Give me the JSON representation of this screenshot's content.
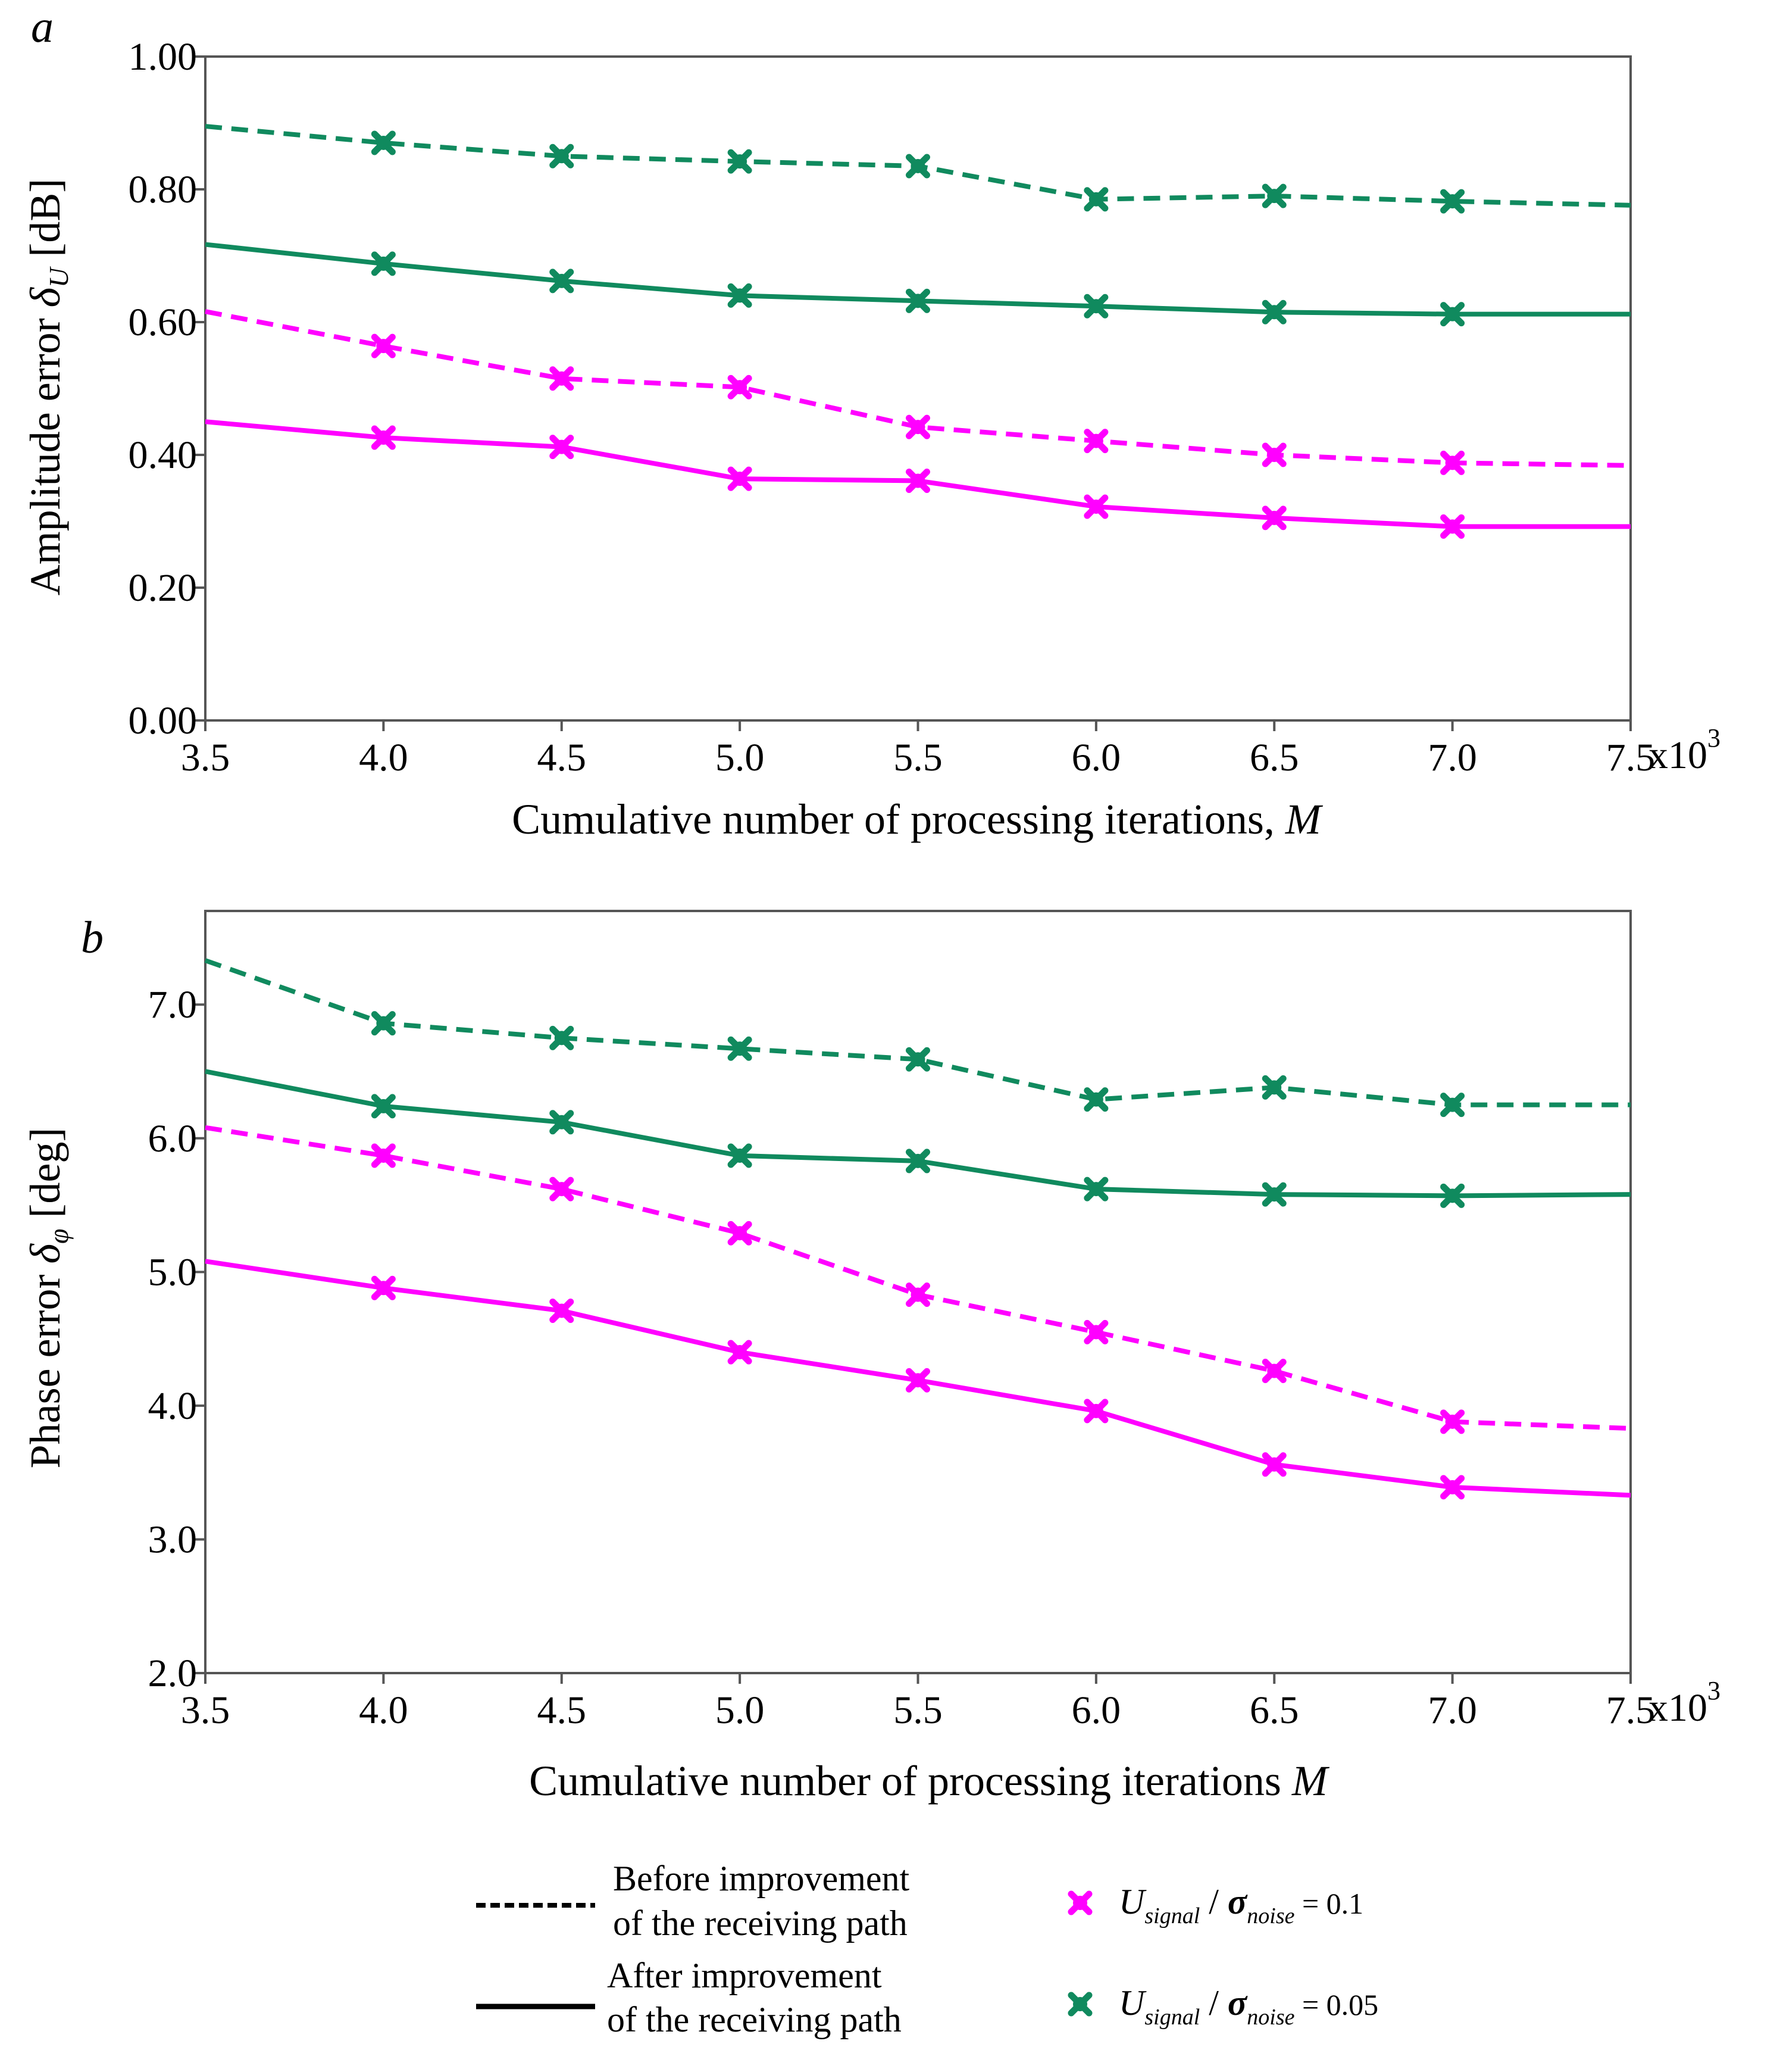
{
  "colors": {
    "magenta": "#ff00ff",
    "green": "#108a5e",
    "frame": "#555555",
    "text": "#000000"
  },
  "chart_data": [
    {
      "type": "line",
      "panel_label": "a",
      "x": [
        3.5,
        4.0,
        4.5,
        5.0,
        5.5,
        6.0,
        6.5,
        7.0,
        7.5
      ],
      "xlim": [
        3.5,
        7.5
      ],
      "ylim": [
        0.0,
        1.0
      ],
      "x_ticks": [
        "3.5",
        "4.0",
        "4.5",
        "5.0",
        "5.5",
        "6.0",
        "6.5",
        "7.0",
        "7.5"
      ],
      "y_ticks": [
        "0.00",
        "0.20",
        "0.40",
        "0.60",
        "0.80",
        "1.00"
      ],
      "x_multiplier": "x10",
      "x_multiplier_exp": "3",
      "xlabel": "Cumulative number of processing iterations, ",
      "xlabel_var": "M",
      "ylabel": "Amplitude error ",
      "ylabel_sym": "δ",
      "ylabel_sub": "U",
      "ylabel_unit": " [dB]",
      "series": [
        {
          "name": "Before improvement, Usignal/σnoise = 0.05",
          "color": "green",
          "dash": true,
          "values": [
            0.895,
            0.87,
            0.85,
            0.842,
            0.835,
            0.785,
            0.79,
            0.782,
            0.776
          ]
        },
        {
          "name": "After improvement, Usignal/σnoise = 0.05",
          "color": "green",
          "dash": false,
          "values": [
            0.717,
            0.688,
            0.662,
            0.64,
            0.632,
            0.624,
            0.615,
            0.612,
            0.612
          ]
        },
        {
          "name": "Before improvement, Usignal/σnoise = 0.1",
          "color": "magenta",
          "dash": true,
          "values": [
            0.616,
            0.564,
            0.515,
            0.502,
            0.442,
            0.421,
            0.4,
            0.388,
            0.384
          ]
        },
        {
          "name": "After improvement, Usignal/σnoise = 0.1",
          "color": "magenta",
          "dash": false,
          "values": [
            0.45,
            0.426,
            0.412,
            0.364,
            0.361,
            0.322,
            0.305,
            0.292,
            0.292
          ]
        }
      ]
    },
    {
      "type": "line",
      "panel_label": "b",
      "x": [
        3.5,
        4.0,
        4.5,
        5.0,
        5.5,
        6.0,
        6.5,
        7.0,
        7.5
      ],
      "xlim": [
        3.5,
        7.5
      ],
      "ylim": [
        2.0,
        7.7
      ],
      "x_ticks": [
        "3.5",
        "4.0",
        "4.5",
        "5.0",
        "5.5",
        "6.0",
        "6.5",
        "7.0",
        "7.5"
      ],
      "y_ticks": [
        "2.0",
        "3.0",
        "4.0",
        "5.0",
        "6.0",
        "7.0"
      ],
      "x_multiplier": "x10",
      "x_multiplier_exp": "3",
      "xlabel": "Cumulative number of processing iterations ",
      "xlabel_var": "M",
      "ylabel": "Phase error ",
      "ylabel_sym": "δ",
      "ylabel_sub": "φ",
      "ylabel_unit": " [deg]",
      "series": [
        {
          "name": "Before improvement, Usignal/σnoise = 0.05",
          "color": "green",
          "dash": true,
          "values": [
            7.33,
            6.86,
            6.75,
            6.67,
            6.59,
            6.29,
            6.38,
            6.25,
            6.25
          ]
        },
        {
          "name": "After improvement, Usignal/σnoise = 0.05",
          "color": "green",
          "dash": false,
          "values": [
            6.5,
            6.24,
            6.12,
            5.87,
            5.83,
            5.62,
            5.58,
            5.57,
            5.58
          ]
        },
        {
          "name": "Before improvement, Usignal/σnoise = 0.1",
          "color": "magenta",
          "dash": true,
          "values": [
            6.08,
            5.87,
            5.62,
            5.29,
            4.83,
            4.55,
            4.26,
            3.88,
            3.83
          ]
        },
        {
          "name": "After improvement, Usignal/σnoise = 0.1",
          "color": "magenta",
          "dash": false,
          "values": [
            5.08,
            4.88,
            4.71,
            4.4,
            4.19,
            3.96,
            3.56,
            3.39,
            3.33
          ]
        }
      ]
    }
  ],
  "legend": {
    "dashed_line1": "Before improvement",
    "dashed_line2": "of the receiving path",
    "solid_line1": "After improvement",
    "solid_line2": "of the receiving path",
    "marker1": {
      "U": "U",
      "sub1": "signal",
      "slash": " / ",
      "sigma": "σ",
      "sub2": "noise",
      "value": " = 0.1"
    },
    "marker2": {
      "U": "U",
      "sub1": "signal",
      "slash": " / ",
      "sigma": "σ",
      "sub2": "noise",
      "value": " = 0.05"
    }
  }
}
